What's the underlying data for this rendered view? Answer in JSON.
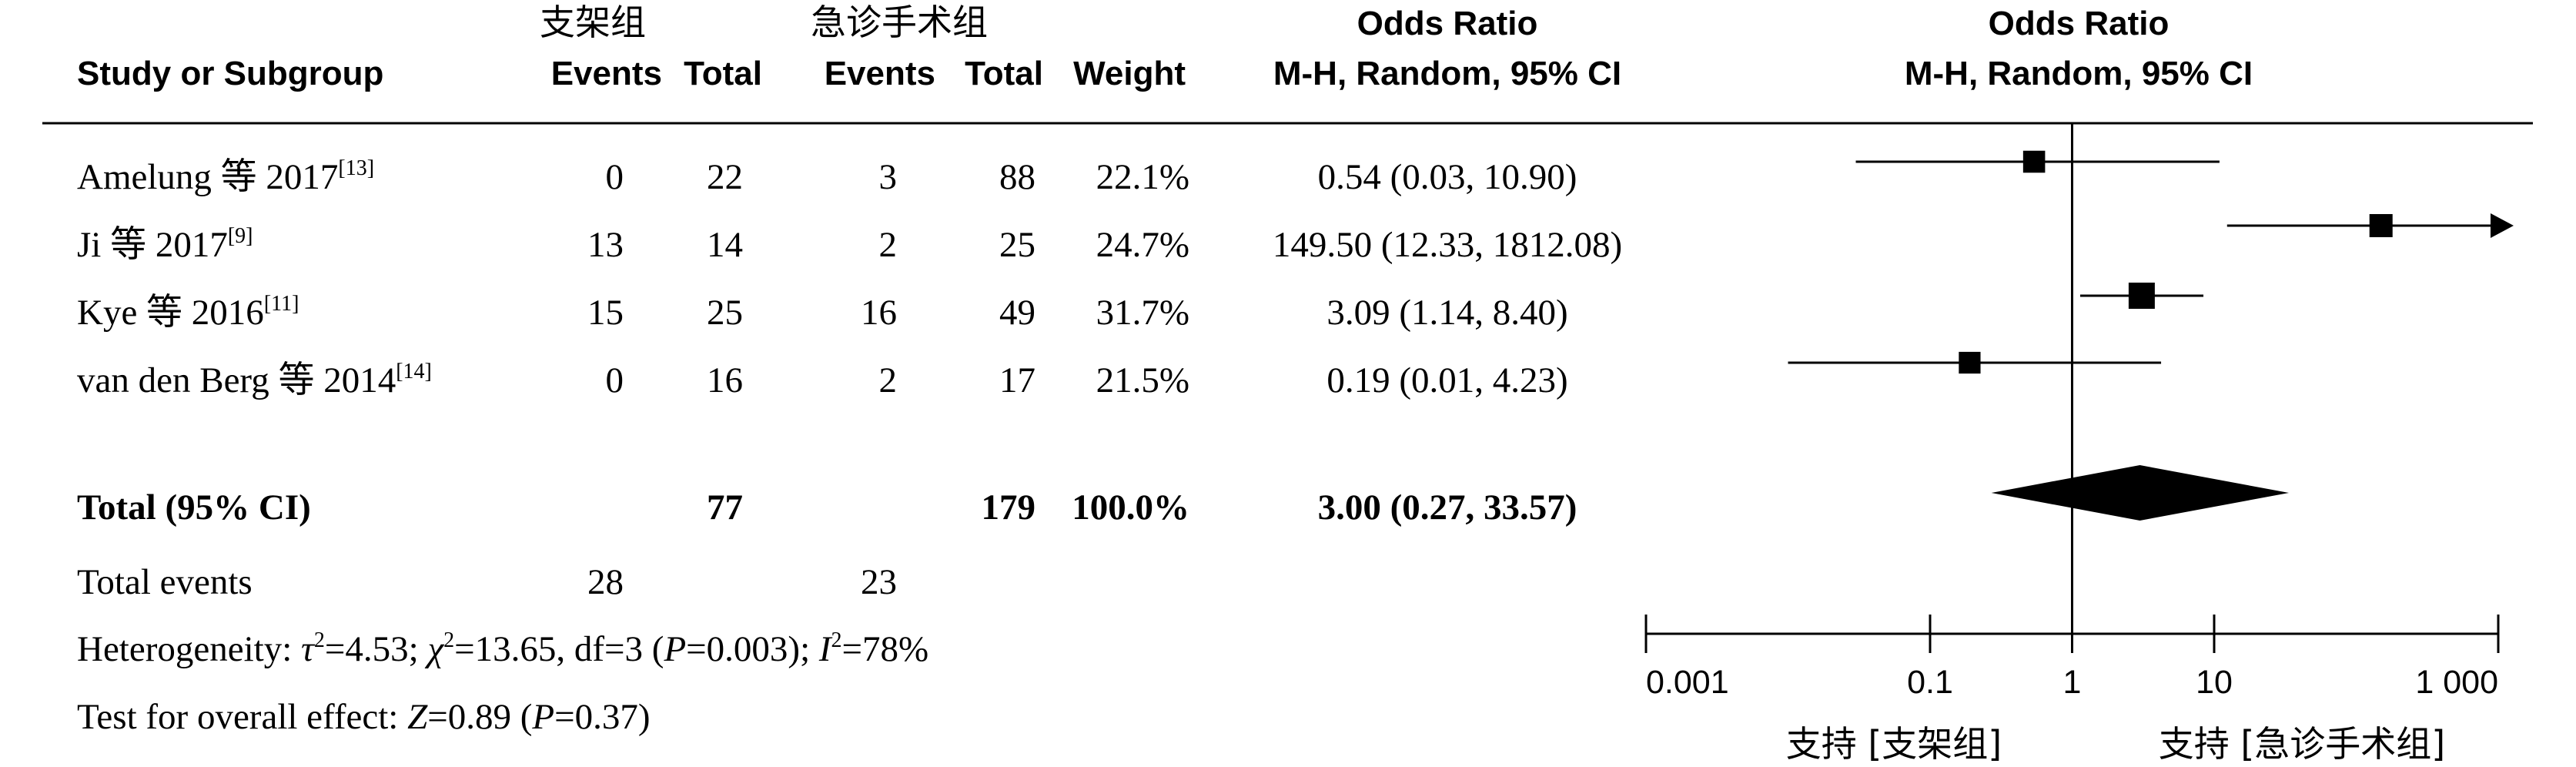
{
  "header": {
    "group1_name": "支架组",
    "group2_name": "急诊手术组",
    "col_study": "Study or Subgroup",
    "col_events1": "Events",
    "col_total1": "Total",
    "col_events2": "Events",
    "col_total2": "Total",
    "col_weight": "Weight",
    "or_title": "Odds Ratio",
    "or_method": "M-H, Random, 95% CI",
    "plot_title": "Odds Ratio",
    "plot_method": "M-H, Random, 95% CI"
  },
  "studies": [
    {
      "name": "Amelung 等 2017",
      "ref": "[13]",
      "events1": "0",
      "total1": "22",
      "events2": "3",
      "total2": "88",
      "weight": "22.1%",
      "or_text": "0.54 (0.03, 10.90)"
    },
    {
      "name": "Ji 等 2017",
      "ref": "[9]",
      "events1": "13",
      "total1": "14",
      "events2": "2",
      "total2": "25",
      "weight": "24.7%",
      "or_text": "149.50 (12.33, 1812.08)"
    },
    {
      "name": "Kye 等 2016",
      "ref": "[11]",
      "events1": "15",
      "total1": "25",
      "events2": "16",
      "total2": "49",
      "weight": "31.7%",
      "or_text": "3.09 (1.14, 8.40)"
    },
    {
      "name": "van den Berg 等 2014",
      "ref": "[14]",
      "events1": "0",
      "total1": "16",
      "events2": "2",
      "total2": "17",
      "weight": "21.5%",
      "or_text": "0.19 (0.01, 4.23)"
    }
  ],
  "total": {
    "label": "Total (95% CI)",
    "total1": "77",
    "total2": "179",
    "weight": "100.0%",
    "or_text": "3.00 (0.27, 33.57)"
  },
  "total_events": {
    "label": "Total events",
    "events1": "28",
    "events2": "23"
  },
  "heterogeneity": {
    "prefix": "Heterogeneity: ",
    "tau_sym": "τ",
    "tau_val": "=4.53; ",
    "chi_sym": "χ",
    "chi_val": "=13.65, df=3 (",
    "p_sym": "P",
    "p_val": "=0.003); ",
    "i_sym": "I",
    "i_val": "=78%"
  },
  "overall_effect": {
    "prefix": "Test for overall effect: ",
    "z_sym": "Z",
    "z_val": "=0.89 (",
    "p_sym": "P",
    "p_val": "=0.37)"
  },
  "favours": {
    "left": "支持 [支架组]",
    "right": "支持 [急诊手术组]"
  },
  "chart_data": {
    "type": "forest",
    "scale": "log",
    "xlim": [
      0.001,
      1000
    ],
    "null_value": 1,
    "tick_labels": [
      "0.001",
      "0.1",
      "1",
      "10",
      "1 000"
    ],
    "tick_values": [
      0.001,
      0.1,
      1,
      10,
      1000
    ],
    "studies": [
      {
        "name": "Amelung 等 2017",
        "or": 0.54,
        "lower": 0.03,
        "upper": 10.9,
        "weight": 22.1
      },
      {
        "name": "Ji 等 2017",
        "or": 149.5,
        "lower": 12.33,
        "upper": 1812.08,
        "weight": 24.7
      },
      {
        "name": "Kye 等 2016",
        "or": 3.09,
        "lower": 1.14,
        "upper": 8.4,
        "weight": 31.7
      },
      {
        "name": "van den Berg 等 2014",
        "or": 0.19,
        "lower": 0.01,
        "upper": 4.23,
        "weight": 21.5
      }
    ],
    "pooled": {
      "or": 3.0,
      "lower": 0.27,
      "upper": 33.57
    }
  }
}
